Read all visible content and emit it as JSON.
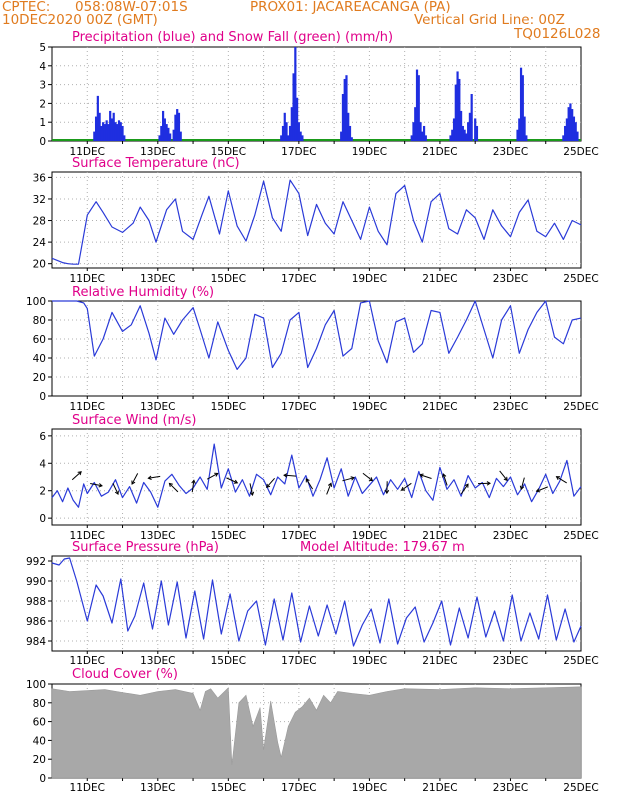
{
  "header": {
    "line1_left": "CPTEC:",
    "line1_coords": "058:08W-07:01S",
    "line1_station": "PROX01: JACAREACANGA (PA)",
    "line2_left": "10DEC2020 00Z (GMT)",
    "line2_right": "Vertical Grid Line: 00Z",
    "code": "TQ0126L028",
    "color": "#e07b1f"
  },
  "colors": {
    "precip": "#1f2ee0",
    "snow": "#1a9a1a",
    "line": "#2a3ad8",
    "cloud": "#a8a8a8",
    "title": "#e0008a",
    "grid": "#b0b0b0"
  },
  "x_ticks": [
    "11DEC",
    "13DEC",
    "15DEC",
    "17DEC",
    "19DEC",
    "21DEC",
    "23DEC",
    "25DEC"
  ],
  "chart_data": [
    {
      "id": "precip",
      "type": "bar",
      "title": "Precipitation (blue) and Snow Fall (green) (mm/h)",
      "ylim": [
        0,
        5
      ],
      "yticks": [
        "0",
        "1",
        "2",
        "3",
        "4",
        "5"
      ],
      "x_range_days": [
        10,
        25
      ],
      "series_name": "Precipitation",
      "snow_values": 0,
      "x_days": [
        11.2,
        11.25,
        11.3,
        11.35,
        11.4,
        11.45,
        11.5,
        11.55,
        11.6,
        11.65,
        11.7,
        11.75,
        11.8,
        11.85,
        11.9,
        11.95,
        12.0,
        12.05,
        13.05,
        13.1,
        13.15,
        13.2,
        13.25,
        13.3,
        13.35,
        13.45,
        13.5,
        13.55,
        13.6,
        13.65,
        16.5,
        16.55,
        16.6,
        16.65,
        16.7,
        16.75,
        16.8,
        16.85,
        16.9,
        16.95,
        17.0,
        17.05,
        17.1,
        18.2,
        18.25,
        18.3,
        18.35,
        18.4,
        18.45,
        18.5,
        20.2,
        20.25,
        20.3,
        20.35,
        20.4,
        20.45,
        20.5,
        20.55,
        20.6,
        21.3,
        21.35,
        21.4,
        21.45,
        21.5,
        21.55,
        21.6,
        21.65,
        21.7,
        21.75,
        21.8,
        21.85,
        21.9,
        22.0,
        22.05,
        23.2,
        23.25,
        23.3,
        23.35,
        23.4,
        23.45,
        24.5,
        24.55,
        24.6,
        24.65,
        24.7,
        24.75,
        24.8,
        24.85,
        24.9
      ],
      "values": [
        0.5,
        1.3,
        2.4,
        1.5,
        0.8,
        1.0,
        0.9,
        1.1,
        0.9,
        1.6,
        1.2,
        1.5,
        1.0,
        0.9,
        1.1,
        1.0,
        0.8,
        0.3,
        0.3,
        0.8,
        1.6,
        1.2,
        0.9,
        0.7,
        0.4,
        0.6,
        1.4,
        1.7,
        1.5,
        0.5,
        0.3,
        0.8,
        1.5,
        1.0,
        0.3,
        0.8,
        1.8,
        3.6,
        5.0,
        2.3,
        1.0,
        0.5,
        0.3,
        0.5,
        2.5,
        3.3,
        3.5,
        1.5,
        0.8,
        0.2,
        0.3,
        1.0,
        1.8,
        3.8,
        3.5,
        1.0,
        0.5,
        0.8,
        0.3,
        0.3,
        0.6,
        1.2,
        3.0,
        3.7,
        3.3,
        1.6,
        0.8,
        0.6,
        0.4,
        1.0,
        1.5,
        2.5,
        1.2,
        0.8,
        0.6,
        1.2,
        3.9,
        3.5,
        1.3,
        0.3,
        0.3,
        0.8,
        1.2,
        1.8,
        2.0,
        1.7,
        1.3,
        1.0,
        0.5
      ]
    },
    {
      "id": "temp",
      "type": "line",
      "title": "Surface Temperature (nC)",
      "ylim": [
        19.2,
        37
      ],
      "yticks": [
        "20",
        "24",
        "28",
        "32",
        "36"
      ],
      "series_name": "Surface Temperature",
      "x_days": [
        10.0,
        10.15,
        10.3,
        10.45,
        10.6,
        10.75,
        11.0,
        11.25,
        11.45,
        11.7,
        12.0,
        12.3,
        12.5,
        12.75,
        12.95,
        13.25,
        13.5,
        13.7,
        14.0,
        14.25,
        14.45,
        14.75,
        15.0,
        15.25,
        15.5,
        15.75,
        16.0,
        16.25,
        16.5,
        16.75,
        17.0,
        17.25,
        17.5,
        17.75,
        18.0,
        18.25,
        18.5,
        18.75,
        19.0,
        19.25,
        19.5,
        19.75,
        20.0,
        20.25,
        20.5,
        20.75,
        21.0,
        21.25,
        21.5,
        21.75,
        22.0,
        22.25,
        22.5,
        22.75,
        23.0,
        23.25,
        23.5,
        23.75,
        24.0,
        24.25,
        24.5,
        24.75,
        25.0
      ],
      "values": [
        21.0,
        20.6,
        20.2,
        20.0,
        19.9,
        19.9,
        29.0,
        31.5,
        29.5,
        26.8,
        25.8,
        27.5,
        30.5,
        28.0,
        24.0,
        30.0,
        32.0,
        26.0,
        24.5,
        29.0,
        32.5,
        25.5,
        33.5,
        27.0,
        24.2,
        29.0,
        35.3,
        28.5,
        26.0,
        35.5,
        33.0,
        25.2,
        31.0,
        27.5,
        25.5,
        31.5,
        28.0,
        24.5,
        30.5,
        26.0,
        23.5,
        33.0,
        34.5,
        28.0,
        24.0,
        31.5,
        33.0,
        26.5,
        25.5,
        30.0,
        28.5,
        24.5,
        30.0,
        27.0,
        25.0,
        29.5,
        31.8,
        26.0,
        25.0,
        27.5,
        24.5,
        28.0,
        27.2
      ]
    },
    {
      "id": "rh",
      "type": "line",
      "title": "Relative Humidity (%)",
      "ylim": [
        0,
        100
      ],
      "yticks": [
        "0",
        "20",
        "40",
        "60",
        "80",
        "100"
      ],
      "series_name": "Relative Humidity",
      "x_days": [
        10.0,
        10.5,
        10.7,
        10.9,
        11.0,
        11.2,
        11.45,
        11.7,
        12.0,
        12.25,
        12.5,
        12.75,
        12.95,
        13.2,
        13.45,
        13.7,
        14.0,
        14.2,
        14.45,
        14.7,
        15.0,
        15.25,
        15.5,
        15.75,
        16.0,
        16.25,
        16.5,
        16.75,
        17.0,
        17.25,
        17.5,
        17.75,
        18.0,
        18.25,
        18.5,
        18.75,
        19.0,
        19.25,
        19.5,
        19.75,
        20.0,
        20.25,
        20.5,
        20.75,
        21.0,
        21.25,
        21.5,
        21.75,
        22.0,
        22.25,
        22.5,
        22.75,
        23.0,
        23.25,
        23.5,
        23.75,
        24.0,
        24.25,
        24.5,
        24.75,
        25.0
      ],
      "values": [
        100,
        100,
        100,
        98,
        92,
        42,
        60,
        88,
        68,
        75,
        95,
        66,
        38,
        82,
        65,
        80,
        93,
        70,
        40,
        78,
        48,
        28,
        40,
        86,
        82,
        30,
        45,
        80,
        88,
        30,
        50,
        75,
        90,
        42,
        50,
        98,
        100,
        58,
        35,
        78,
        82,
        46,
        55,
        90,
        88,
        45,
        62,
        80,
        100,
        70,
        40,
        80,
        95,
        45,
        70,
        88,
        100,
        62,
        55,
        80,
        82
      ]
    },
    {
      "id": "wind",
      "type": "line",
      "title": "Surface Wind (m/s)",
      "ylim": [
        -0.5,
        6.5
      ],
      "yticks": [
        "0",
        "2",
        "4",
        "6"
      ],
      "series_name": "Surface Wind",
      "x_days": [
        10.0,
        10.15,
        10.3,
        10.45,
        10.6,
        10.75,
        10.9,
        11.0,
        11.2,
        11.4,
        11.6,
        11.8,
        12.0,
        12.2,
        12.4,
        12.6,
        12.8,
        13.0,
        13.2,
        13.4,
        13.6,
        13.8,
        14.0,
        14.2,
        14.4,
        14.6,
        14.8,
        15.0,
        15.2,
        15.4,
        15.6,
        15.8,
        16.0,
        16.2,
        16.4,
        16.6,
        16.8,
        17.0,
        17.2,
        17.4,
        17.6,
        17.8,
        18.0,
        18.2,
        18.4,
        18.6,
        18.8,
        19.0,
        19.2,
        19.4,
        19.6,
        19.8,
        20.0,
        20.2,
        20.4,
        20.6,
        20.8,
        21.0,
        21.2,
        21.4,
        21.6,
        21.8,
        22.0,
        22.2,
        22.4,
        22.6,
        22.8,
        23.0,
        23.2,
        23.4,
        23.6,
        23.8,
        24.0,
        24.2,
        24.4,
        24.6,
        24.8,
        25.0
      ],
      "values": [
        1.5,
        2.0,
        1.2,
        2.2,
        1.3,
        0.8,
        2.5,
        1.8,
        2.6,
        1.6,
        1.9,
        2.8,
        1.5,
        2.3,
        1.1,
        2.6,
        1.9,
        0.8,
        2.7,
        3.2,
        2.4,
        1.8,
        2.2,
        3.0,
        2.1,
        5.4,
        2.2,
        3.6,
        1.9,
        2.8,
        1.6,
        3.2,
        2.8,
        1.7,
        3.0,
        2.5,
        4.6,
        2.2,
        3.1,
        1.6,
        2.8,
        4.4,
        2.2,
        3.6,
        1.6,
        3.0,
        1.8,
        2.4,
        3.0,
        1.7,
        2.8,
        2.1,
        2.9,
        1.5,
        3.4,
        2.0,
        1.3,
        3.7,
        2.1,
        2.8,
        1.6,
        3.1,
        2.2,
        2.6,
        1.5,
        2.9,
        2.3,
        3.0,
        1.7,
        2.5,
        1.2,
        2.1,
        3.2,
        1.8,
        2.7,
        4.2,
        1.6,
        2.3
      ]
    },
    {
      "id": "pres",
      "type": "line",
      "title": "Surface Pressure (hPa)",
      "subtitle": "Model Altitude: 179.67 m",
      "ylim": [
        983,
        992.5
      ],
      "yticks": [
        "984",
        "986",
        "988",
        "990",
        "992"
      ],
      "series_name": "Surface Pressure",
      "x_days": [
        10.0,
        10.2,
        10.35,
        10.5,
        10.7,
        11.0,
        11.25,
        11.45,
        11.7,
        11.95,
        12.15,
        12.35,
        12.6,
        12.85,
        13.1,
        13.3,
        13.55,
        13.8,
        14.05,
        14.3,
        14.55,
        14.8,
        15.05,
        15.3,
        15.55,
        15.8,
        16.05,
        16.3,
        16.55,
        16.8,
        17.05,
        17.3,
        17.55,
        17.8,
        18.05,
        18.3,
        18.55,
        18.8,
        19.05,
        19.3,
        19.55,
        19.8,
        20.05,
        20.3,
        20.55,
        20.8,
        21.05,
        21.3,
        21.55,
        21.8,
        22.05,
        22.3,
        22.55,
        22.8,
        23.05,
        23.3,
        23.55,
        23.8,
        24.05,
        24.3,
        24.55,
        24.8,
        25.0
      ],
      "values": [
        991.8,
        991.6,
        992.2,
        992.3,
        990.0,
        986.0,
        989.6,
        988.5,
        985.8,
        990.2,
        985.0,
        986.5,
        989.8,
        985.2,
        990.0,
        985.6,
        989.9,
        984.3,
        989.0,
        984.2,
        990.1,
        984.7,
        988.7,
        984.0,
        987.0,
        988.0,
        983.6,
        988.2,
        984.1,
        988.8,
        983.9,
        987.5,
        984.5,
        987.6,
        984.7,
        988.0,
        983.5,
        985.6,
        987.2,
        983.8,
        988.2,
        983.7,
        986.3,
        987.4,
        983.9,
        985.8,
        988.0,
        983.6,
        987.3,
        984.3,
        988.4,
        984.4,
        987.0,
        984.0,
        988.6,
        984.0,
        986.8,
        984.2,
        988.6,
        984.1,
        987.2,
        983.9,
        985.5
      ]
    },
    {
      "id": "cloud",
      "type": "area",
      "title": "Cloud Cover (%)",
      "ylim": [
        0,
        100
      ],
      "yticks": [
        "0",
        "20",
        "40",
        "60",
        "80",
        "100"
      ],
      "series_name": "Cloud Cover",
      "x_days": [
        10.0,
        10.5,
        11.0,
        11.5,
        12.0,
        12.5,
        13.0,
        13.5,
        14.0,
        14.2,
        14.35,
        14.5,
        14.7,
        15.0,
        15.1,
        15.3,
        15.5,
        15.7,
        15.9,
        16.0,
        16.2,
        16.4,
        16.5,
        16.7,
        16.9,
        17.1,
        17.3,
        17.5,
        17.7,
        17.9,
        18.1,
        18.5,
        19.0,
        19.5,
        20.0,
        21.0,
        22.0,
        23.0,
        24.0,
        25.0
      ],
      "values": [
        95,
        92,
        93,
        94,
        91,
        88,
        92,
        94,
        90,
        72,
        92,
        95,
        85,
        96,
        14,
        80,
        88,
        55,
        75,
        30,
        82,
        38,
        22,
        55,
        70,
        76,
        85,
        72,
        88,
        80,
        92,
        90,
        88,
        92,
        95,
        94,
        96,
        95,
        96,
        97
      ]
    }
  ]
}
